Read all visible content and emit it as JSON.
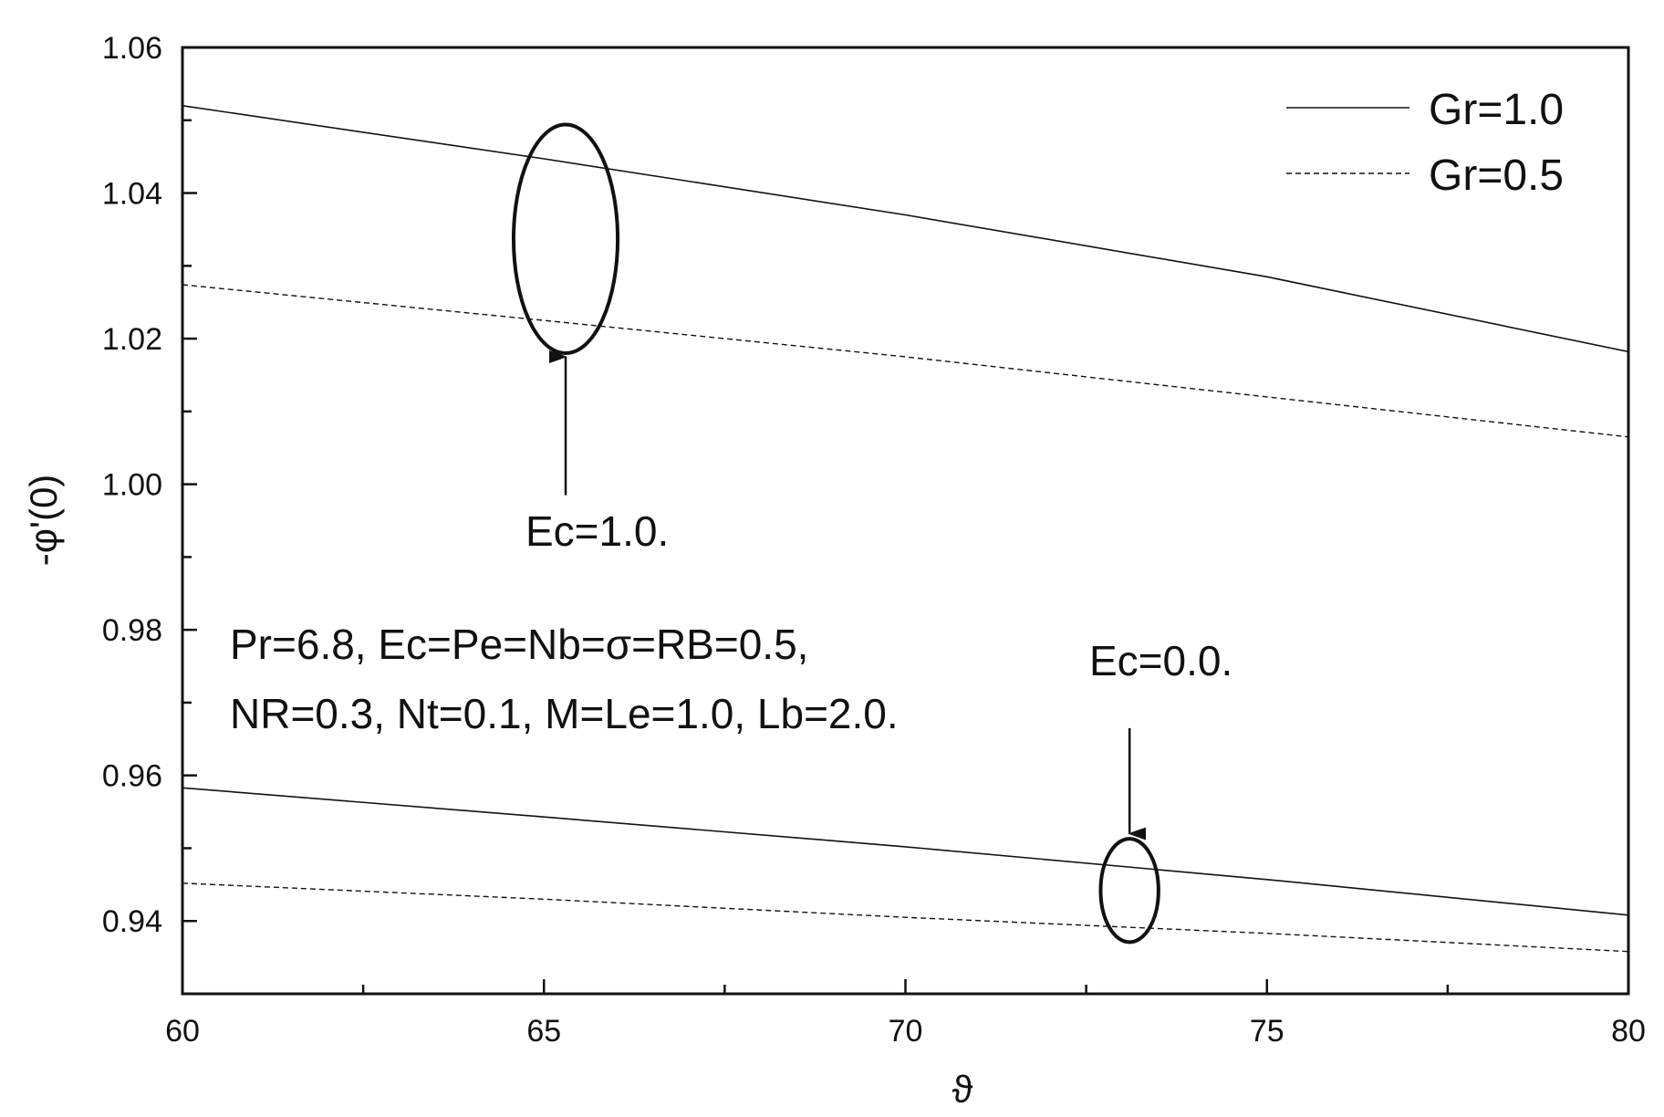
{
  "chart_data": {
    "type": "line",
    "xlabel": "ϑ",
    "ylabel": "-φ'(0)",
    "xlim": [
      60,
      80
    ],
    "ylim": [
      0.93,
      1.06
    ],
    "xticks": [
      60,
      65,
      70,
      75,
      80
    ],
    "xtick_labels": [
      "60",
      "65",
      "70",
      "75",
      "80"
    ],
    "yticks": [
      0.94,
      0.96,
      0.98,
      1.0,
      1.02,
      1.04,
      1.06
    ],
    "ytick_labels": [
      "0.94",
      "0.96",
      "0.98",
      "1.00",
      "1.02",
      "1.04",
      "1.06"
    ],
    "legend_position": "top-right",
    "legend": [
      {
        "label": "Gr=1.0",
        "style": "solid"
      },
      {
        "label": "Gr=0.5",
        "style": "dashed"
      }
    ],
    "series": [
      {
        "group": "Ec=1.0",
        "legend_label": "Gr=1.0",
        "style": "solid",
        "x": [
          60,
          65,
          70,
          75,
          80
        ],
        "y": [
          1.052,
          1.0447,
          1.037,
          1.0285,
          1.0182
        ]
      },
      {
        "group": "Ec=1.0",
        "legend_label": "Gr=0.5",
        "style": "dashed",
        "x": [
          60,
          65,
          70,
          75,
          80
        ],
        "y": [
          1.0274,
          1.0225,
          1.0175,
          1.012,
          1.0065
        ]
      },
      {
        "group": "Ec=0.0",
        "legend_label": "Gr=1.0",
        "style": "solid",
        "x": [
          60,
          65,
          70,
          75,
          80
        ],
        "y": [
          0.9583,
          0.9543,
          0.9502,
          0.9457,
          0.9408
        ]
      },
      {
        "group": "Ec=0.0",
        "legend_label": "Gr=0.5",
        "style": "dashed",
        "x": [
          60,
          65,
          70,
          75,
          80
        ],
        "y": [
          0.9452,
          0.943,
          0.9405,
          0.9383,
          0.9358
        ]
      }
    ],
    "annotations": {
      "ec1_label": "Ec=1.0.",
      "ec0_label": "Ec=0.0.",
      "params_line1": "Pr=6.8, Ec=Pe=Nb=σ=RB=0.5,",
      "params_line2": "NR=0.3, Nt=0.1, M=Le=1.0, Lb=2.0.",
      "ec1_ellipse": {
        "cx": 65.3,
        "cy": 1.0337,
        "rx": 0.72,
        "ry": 0.0157
      },
      "ec0_ellipse": {
        "cx": 73.1,
        "cy": 0.9442,
        "rx": 0.4,
        "ry": 0.0071
      },
      "ec1_arrow": {
        "x1": 65.3,
        "y1": 0.9985,
        "x2": 65.3,
        "y2": 1.0175
      },
      "ec0_arrow": {
        "x1": 73.1,
        "y1": 0.9665,
        "x2": 73.1,
        "y2": 0.952
      }
    }
  }
}
